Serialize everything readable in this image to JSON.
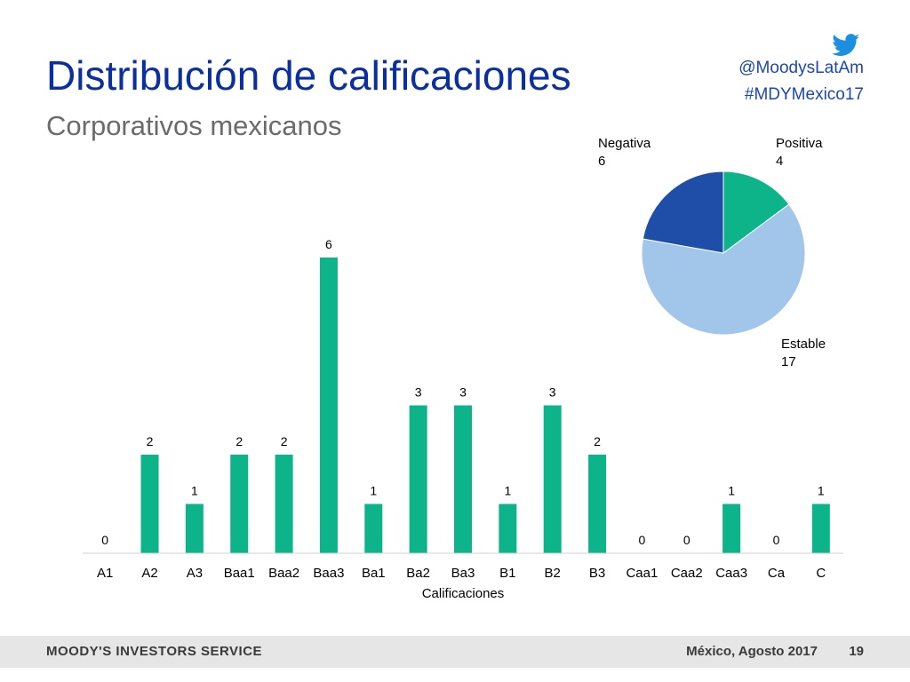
{
  "header": {
    "title": "Distribución de calificaciones",
    "subtitle": "Corporativos mexicanos",
    "twitter_handle": "@MoodysLatAm",
    "hashtag": "#MDYMexico17",
    "twitter_icon": "twitter-bird-icon"
  },
  "colors": {
    "title": "#0a2fa0",
    "bar": "#0db489",
    "pie_positive": "#0db489",
    "pie_stable": "#a2c6ea",
    "pie_negative": "#1f4ea8",
    "link": "#1a47b8"
  },
  "chart_data": [
    {
      "type": "bar",
      "categories": [
        "A1",
        "A2",
        "A3",
        "Baa1",
        "Baa2",
        "Baa3",
        "Ba1",
        "Ba2",
        "Ba3",
        "B1",
        "B2",
        "B3",
        "Caa1",
        "Caa2",
        "Caa3",
        "Ca",
        "C"
      ],
      "values": [
        0,
        2,
        1,
        2,
        2,
        6,
        1,
        3,
        3,
        1,
        3,
        2,
        0,
        0,
        1,
        0,
        1
      ],
      "xlabel": "Calificaciones",
      "ylabel": "",
      "ylim": [
        0,
        6
      ],
      "grid": false,
      "data_labels": true
    },
    {
      "type": "pie",
      "slices": [
        {
          "label": "Positiva",
          "value": 4
        },
        {
          "label": "Estable",
          "value": 17
        },
        {
          "label": "Negativa",
          "value": 6
        }
      ]
    }
  ],
  "footer": {
    "brand": "MOODY'S INVESTORS SERVICE",
    "date": "México, Agosto 2017",
    "page": "19"
  }
}
